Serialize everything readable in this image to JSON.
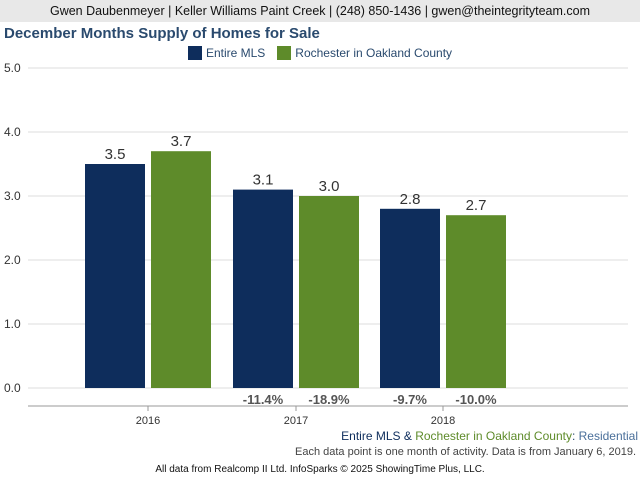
{
  "header": {
    "contact": "Gwen Daubenmeyer | Keller Williams Paint Creek | (248) 850-1436 | gwen@theintegrityteam.com"
  },
  "chart_data": {
    "type": "bar",
    "title": "December Months Supply of Homes for Sale",
    "categories": [
      "2016",
      "2017",
      "2018"
    ],
    "series": [
      {
        "name": "Entire MLS",
        "color": "#0e2d5c",
        "values": [
          3.5,
          3.1,
          2.8
        ],
        "value_labels": [
          "3.5",
          "3.1",
          "2.8"
        ],
        "change_labels": [
          "",
          "-11.4%",
          "-9.7%"
        ]
      },
      {
        "name": "Rochester in Oakland County",
        "color": "#5e8b2a",
        "values": [
          3.7,
          3.0,
          2.7
        ],
        "value_labels": [
          "3.7",
          "3.0",
          "2.7"
        ],
        "change_labels": [
          "",
          "-18.9%",
          "-10.0%"
        ]
      }
    ],
    "ylim": [
      0,
      5
    ],
    "yticks": [
      "0.0",
      "1.0",
      "2.0",
      "3.0",
      "4.0",
      "5.0"
    ],
    "grid": true,
    "legend_position": "top-center",
    "xlabel": "",
    "ylabel": ""
  },
  "footer": {
    "series_a": "Entire MLS",
    "amp": " & ",
    "series_b": "Rochester in Oakland County",
    "colon": ": ",
    "property_type": "Residential",
    "note": "Each data point is one month of activity. Data is from January 6, 2019.",
    "credit": "All data from Realcomp II Ltd. InfoSparks © 2025 ShowingTime Plus, LLC."
  }
}
